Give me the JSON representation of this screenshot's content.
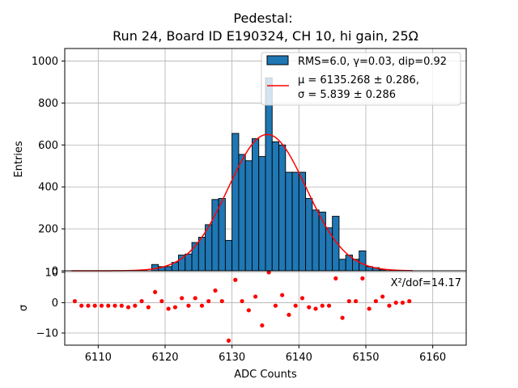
{
  "chart_data": [
    {
      "type": "bar",
      "panel": "main",
      "title_line1": "Pedestal:",
      "title_line2": "Run 24, Board ID E190324, CH 10, hi gain, 25Ω",
      "xlabel": "",
      "ylabel": "Entries",
      "xlim": [
        6105,
        6165
      ],
      "ylim": [
        0,
        1060
      ],
      "yticks": [
        0,
        200,
        400,
        600,
        800,
        1000
      ],
      "grid": true,
      "legend": {
        "placement": "top-right",
        "hist_label": "RMS=6.0, γ=0.03, dip=0.92",
        "fit_label_1": "μ = 6135.268 ± 0.286,",
        "fit_label_2": "σ = 5.839 ± 0.286"
      },
      "bin_width": 1,
      "bins": [
        {
          "x": 6118,
          "v": 30
        },
        {
          "x": 6119,
          "v": 20
        },
        {
          "x": 6120,
          "v": 20
        },
        {
          "x": 6121,
          "v": 40
        },
        {
          "x": 6122,
          "v": 75
        },
        {
          "x": 6123,
          "v": 80
        },
        {
          "x": 6124,
          "v": 135
        },
        {
          "x": 6125,
          "v": 160
        },
        {
          "x": 6126,
          "v": 220
        },
        {
          "x": 6127,
          "v": 340
        },
        {
          "x": 6128,
          "v": 345
        },
        {
          "x": 6129,
          "v": 145
        },
        {
          "x": 6130,
          "v": 655
        },
        {
          "x": 6131,
          "v": 555
        },
        {
          "x": 6132,
          "v": 525
        },
        {
          "x": 6133,
          "v": 630
        },
        {
          "x": 6134,
          "v": 545
        },
        {
          "x": 6135,
          "v": 920
        },
        {
          "x": 6136,
          "v": 615
        },
        {
          "x": 6137,
          "v": 600
        },
        {
          "x": 6138,
          "v": 470
        },
        {
          "x": 6139,
          "v": 470
        },
        {
          "x": 6140,
          "v": 470
        },
        {
          "x": 6141,
          "v": 345
        },
        {
          "x": 6142,
          "v": 290
        },
        {
          "x": 6143,
          "v": 280
        },
        {
          "x": 6144,
          "v": 205
        },
        {
          "x": 6145,
          "v": 260
        },
        {
          "x": 6146,
          "v": 55
        },
        {
          "x": 6147,
          "v": 75
        },
        {
          "x": 6148,
          "v": 55
        },
        {
          "x": 6149,
          "v": 95
        },
        {
          "x": 6150,
          "v": 20
        },
        {
          "x": 6151,
          "v": 15
        },
        {
          "x": 6152,
          "v": 5
        }
      ],
      "fit": {
        "mu": 6135.268,
        "sigma": 5.839,
        "amplitude": 650,
        "x_range": [
          6106,
          6157
        ]
      },
      "colors": {
        "bar": "#1f77b4",
        "fit": "#ff0000"
      }
    },
    {
      "type": "scatter",
      "panel": "residuals",
      "xlabel": "ADC Counts",
      "ylabel": "σ",
      "xlim": [
        6105,
        6165
      ],
      "ylim": [
        -14,
        10.5
      ],
      "xticks": [
        6110,
        6120,
        6130,
        6140,
        6150,
        6160
      ],
      "yticks": [
        -10,
        0,
        10
      ],
      "grid": true,
      "annotation": "X²/dof=14.17",
      "points": [
        {
          "x": 6106.5,
          "y": 0.5
        },
        {
          "x": 6107.5,
          "y": -1
        },
        {
          "x": 6108.5,
          "y": -1
        },
        {
          "x": 6109.5,
          "y": -1
        },
        {
          "x": 6110.5,
          "y": -1
        },
        {
          "x": 6111.5,
          "y": -1
        },
        {
          "x": 6112.5,
          "y": -1
        },
        {
          "x": 6113.5,
          "y": -1
        },
        {
          "x": 6114.5,
          "y": -1.5
        },
        {
          "x": 6115.5,
          "y": -1
        },
        {
          "x": 6116.5,
          "y": 0.5
        },
        {
          "x": 6117.5,
          "y": -1.5
        },
        {
          "x": 6118.5,
          "y": 3.5
        },
        {
          "x": 6119.5,
          "y": 0.5
        },
        {
          "x": 6120.5,
          "y": -2
        },
        {
          "x": 6121.5,
          "y": -1.5
        },
        {
          "x": 6122.5,
          "y": 1.5
        },
        {
          "x": 6123.5,
          "y": -1
        },
        {
          "x": 6124.5,
          "y": 1.5
        },
        {
          "x": 6125.5,
          "y": -1
        },
        {
          "x": 6126.5,
          "y": 0.5
        },
        {
          "x": 6127.5,
          "y": 4
        },
        {
          "x": 6128.5,
          "y": 0.5
        },
        {
          "x": 6129.5,
          "y": -12.5
        },
        {
          "x": 6130.5,
          "y": 7.5
        },
        {
          "x": 6131.5,
          "y": 0.5
        },
        {
          "x": 6132.5,
          "y": -2.5
        },
        {
          "x": 6133.5,
          "y": 2
        },
        {
          "x": 6134.5,
          "y": -7.5
        },
        {
          "x": 6135.5,
          "y": 10
        },
        {
          "x": 6136.5,
          "y": -1
        },
        {
          "x": 6137.5,
          "y": 2.5
        },
        {
          "x": 6138.5,
          "y": -4
        },
        {
          "x": 6139.5,
          "y": -1
        },
        {
          "x": 6140.5,
          "y": 1.5
        },
        {
          "x": 6141.5,
          "y": -1.5
        },
        {
          "x": 6142.5,
          "y": -2
        },
        {
          "x": 6143.5,
          "y": -1
        },
        {
          "x": 6144.5,
          "y": -1
        },
        {
          "x": 6145.5,
          "y": 8
        },
        {
          "x": 6146.5,
          "y": -5
        },
        {
          "x": 6147.5,
          "y": 0.5
        },
        {
          "x": 6148.5,
          "y": 0.5
        },
        {
          "x": 6149.5,
          "y": 8
        },
        {
          "x": 6150.5,
          "y": -2
        },
        {
          "x": 6151.5,
          "y": 0.5
        },
        {
          "x": 6152.5,
          "y": 2
        },
        {
          "x": 6153.5,
          "y": -1
        },
        {
          "x": 6154.5,
          "y": 0
        },
        {
          "x": 6155.5,
          "y": 0
        },
        {
          "x": 6156.5,
          "y": 0.5
        }
      ],
      "colors": {
        "point": "#ff0000"
      }
    }
  ]
}
